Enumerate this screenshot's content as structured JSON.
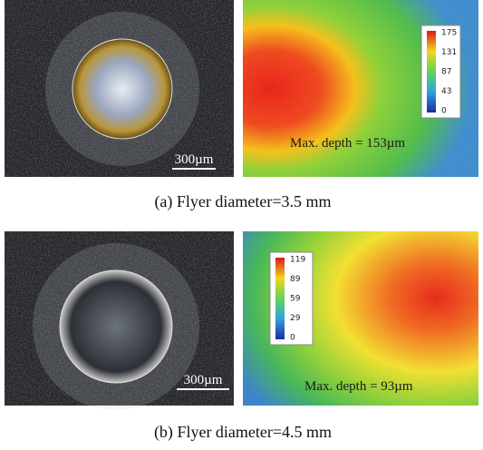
{
  "panels": [
    {
      "label": "(a)",
      "caption": "Flyer diameter=3.5 mm",
      "scale_bar": "300µm",
      "annotation": "Max. depth = 153µm",
      "colorbar_ticks": [
        175,
        131,
        87,
        43,
        0
      ]
    },
    {
      "label": "(b)",
      "caption": "Flyer diameter=4.5 mm",
      "scale_bar": "300µm",
      "annotation": "Max. depth = 93µm",
      "colorbar_ticks": [
        119,
        89,
        59,
        29,
        0
      ]
    }
  ]
}
